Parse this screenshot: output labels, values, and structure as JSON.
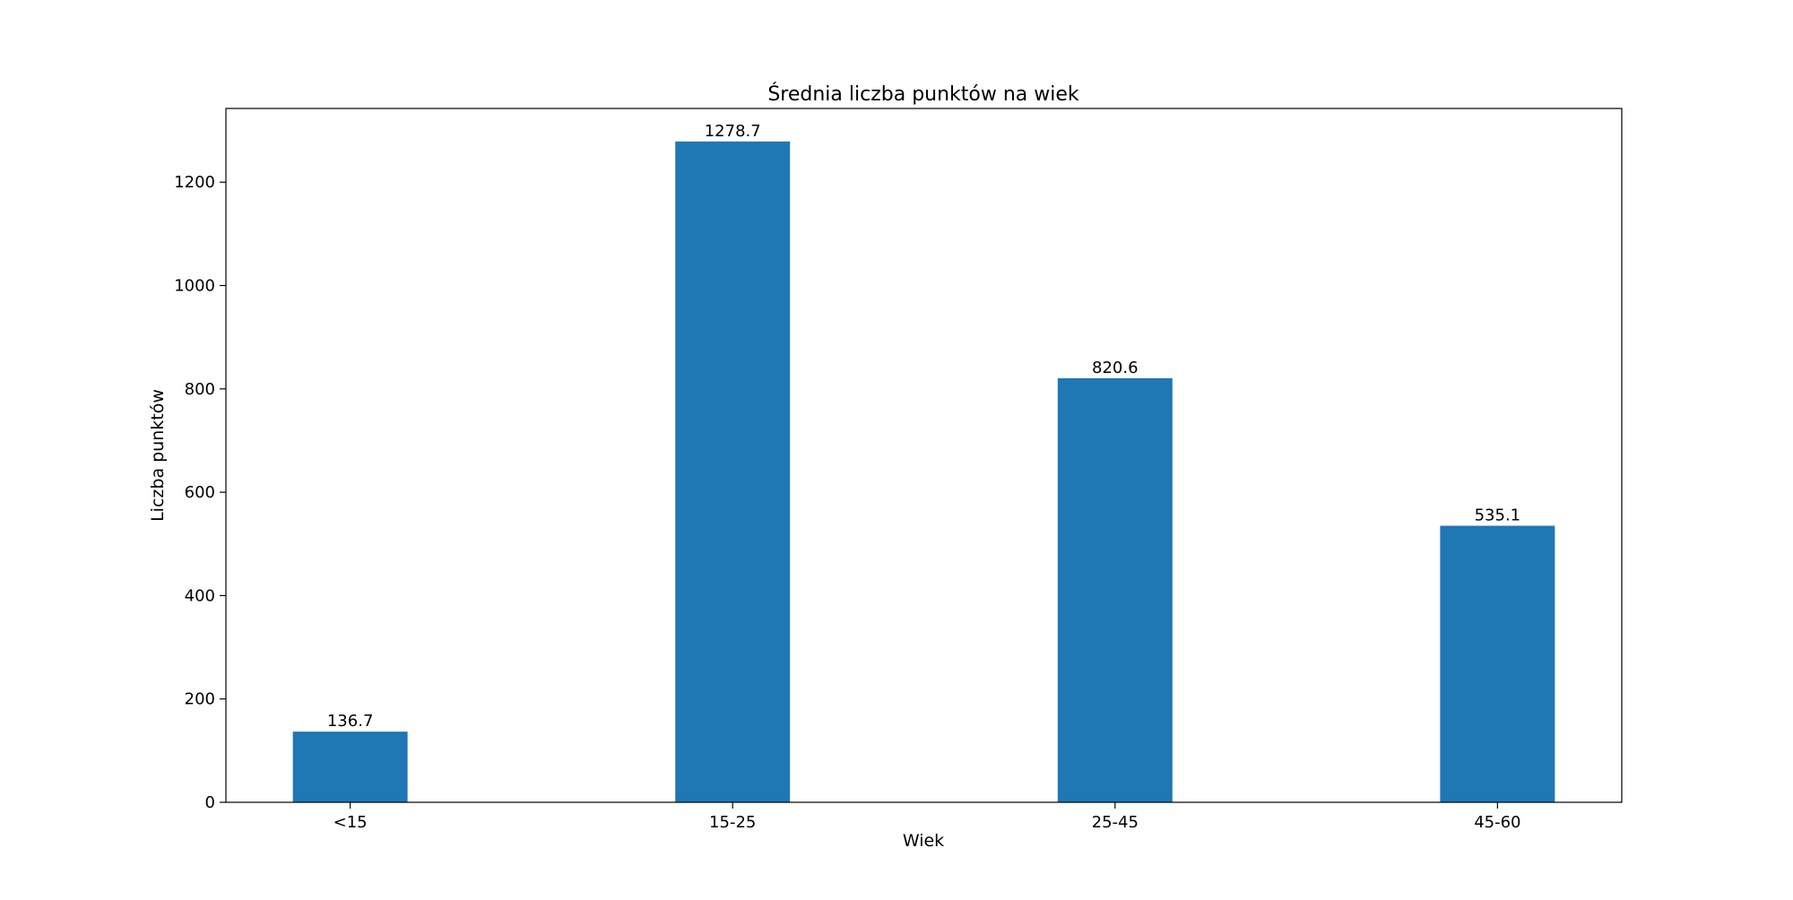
{
  "chart_data": {
    "type": "bar",
    "title": "Średnia liczba punktów na wiek",
    "xlabel": "Wiek",
    "ylabel": "Liczba punktów",
    "categories": [
      "<15",
      "15-25",
      "25-45",
      "45-60"
    ],
    "values": [
      136.7,
      1278.7,
      820.6,
      535.1
    ],
    "value_labels": [
      "136.7",
      "1278.7",
      "820.6",
      "535.1"
    ],
    "ylim": [
      0,
      1342.6
    ],
    "yticks": [
      0,
      200,
      400,
      600,
      800,
      1000,
      1200
    ],
    "grid": false,
    "legend": "none",
    "bar_color": "#1f77b4"
  }
}
